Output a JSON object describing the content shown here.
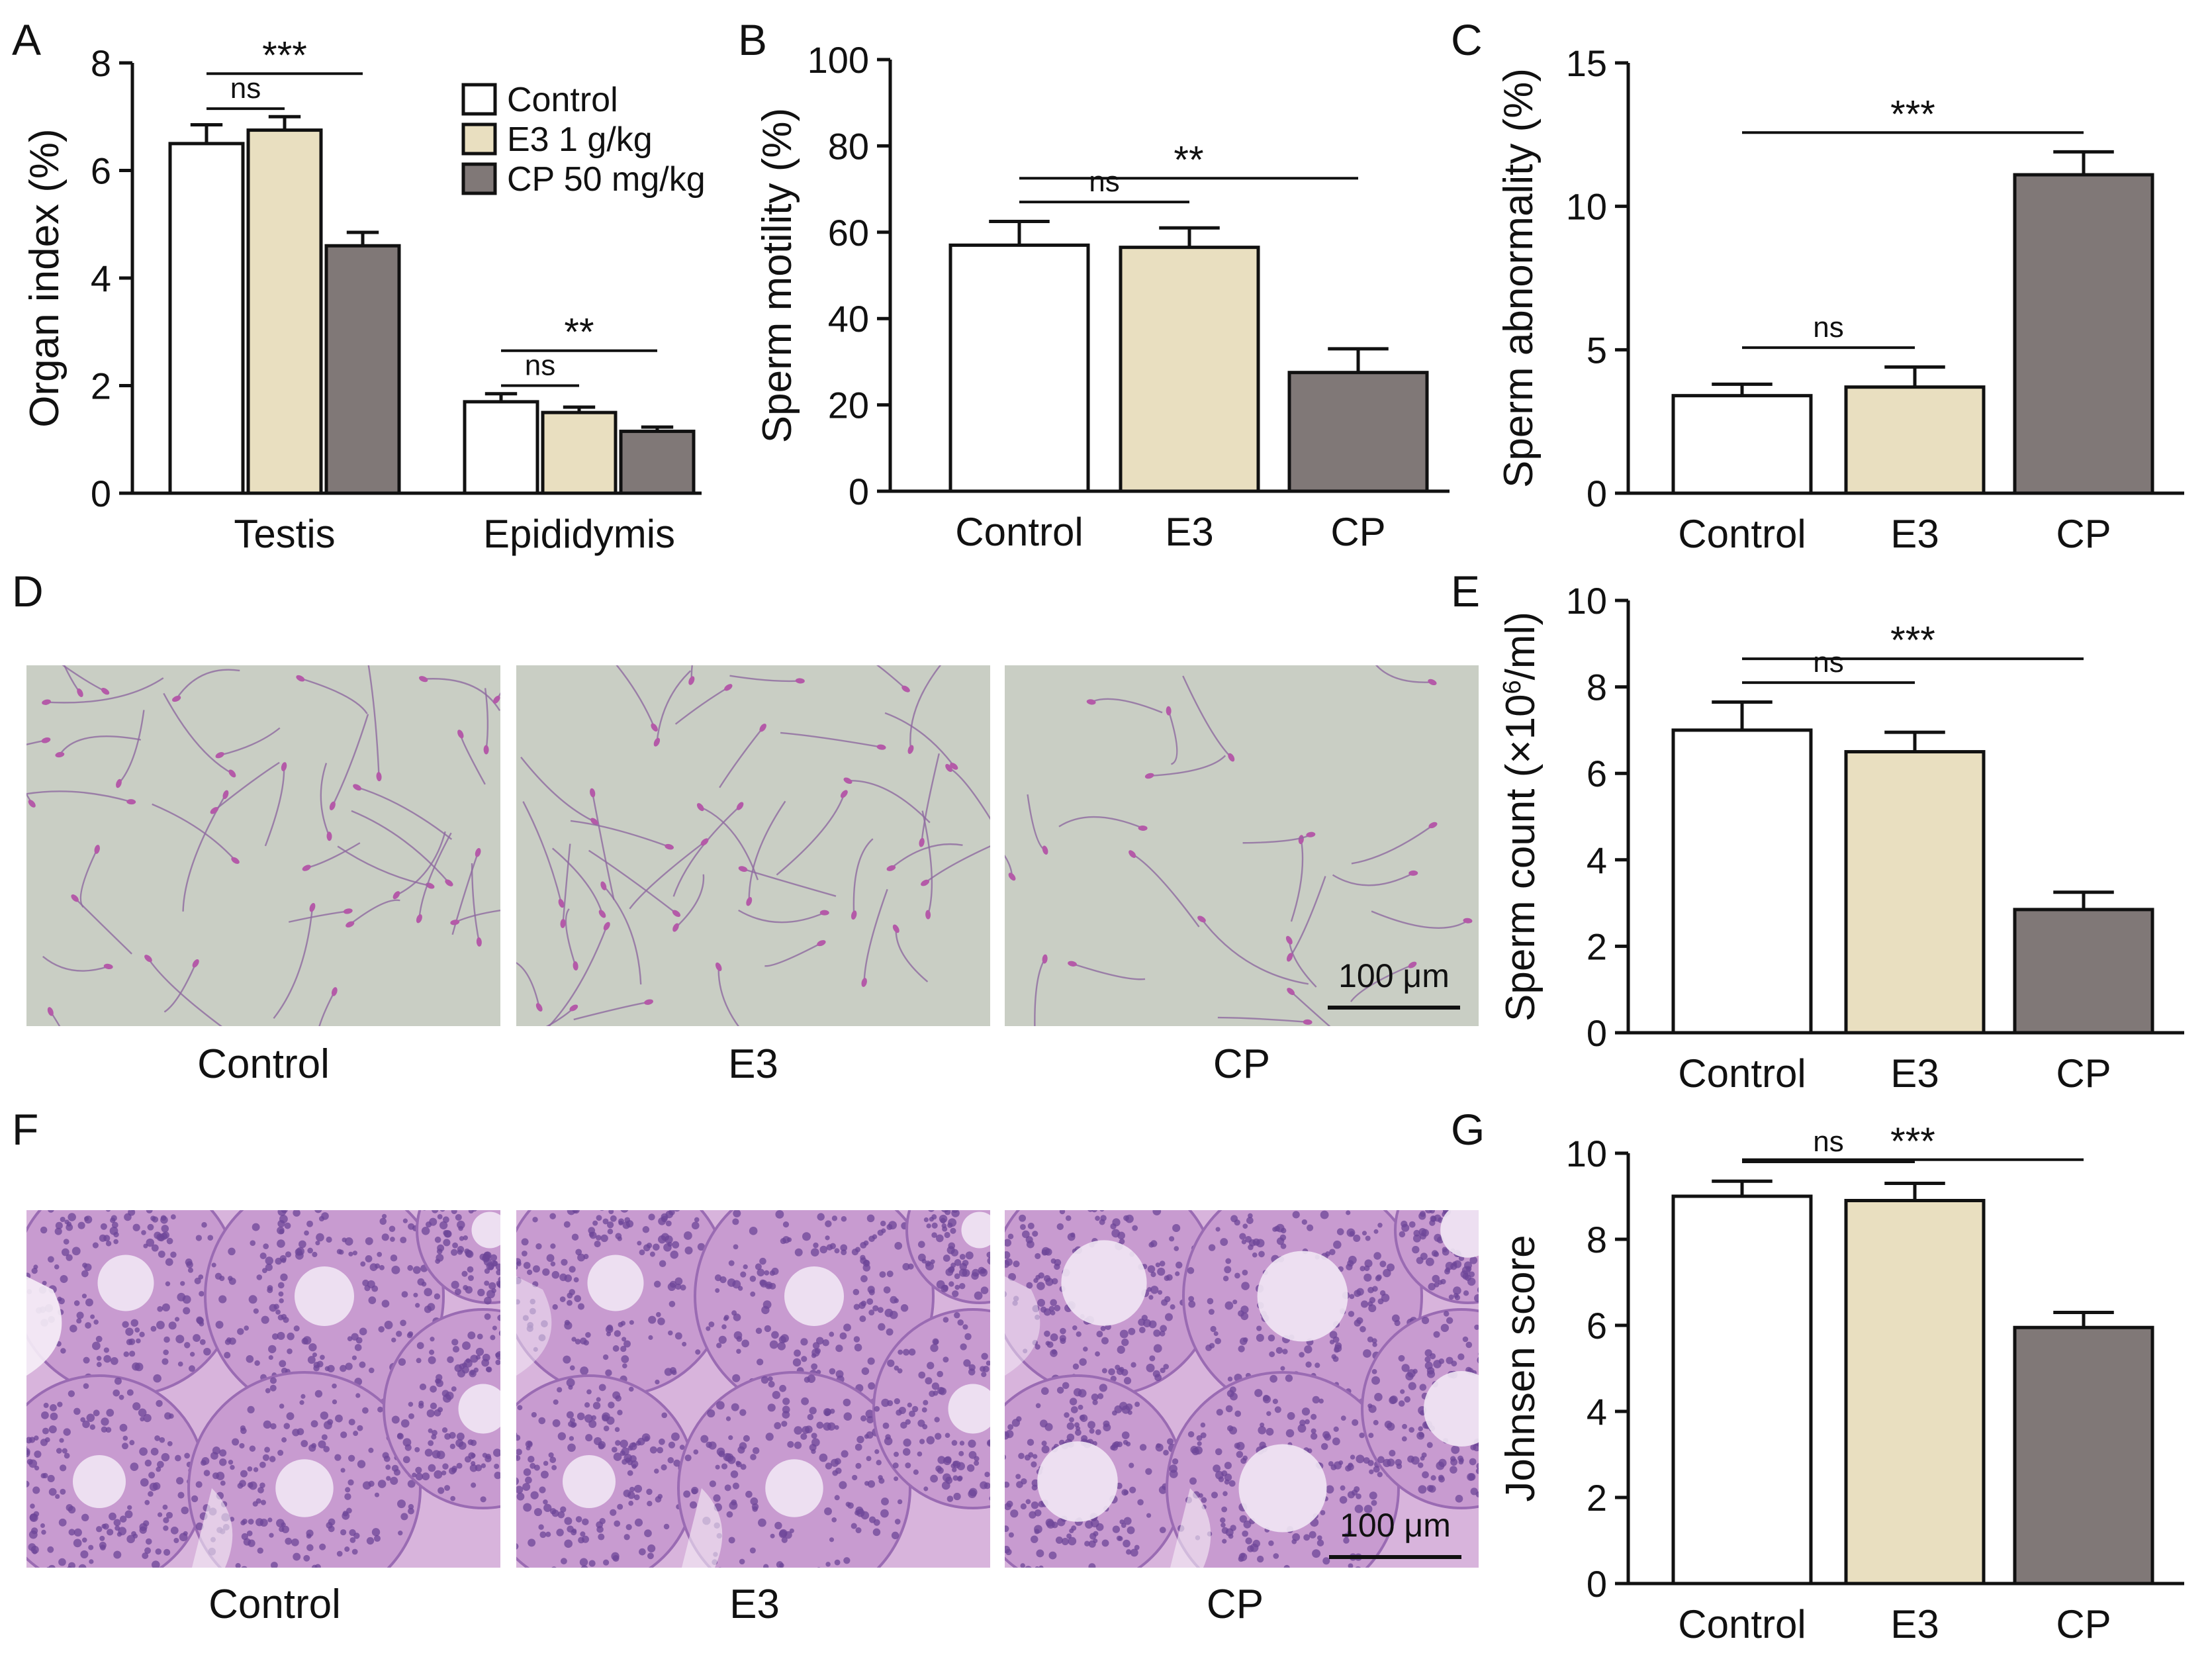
{
  "figure": {
    "panel_labels": [
      "A",
      "B",
      "C",
      "D",
      "E",
      "F",
      "G"
    ]
  },
  "colors": {
    "control": "#ffffff",
    "e3": "#e9dfc0",
    "cp": "#807877",
    "stroke": "#111111",
    "sperm_bg": "#c9cec4",
    "sperm_tail": "#8f6aa0",
    "sperm_head": "#b45aa8",
    "he_bg": "#d8b4dc",
    "he_cell": "#6d4598",
    "he_lumen": "#f1e7f4"
  },
  "chart_data": [
    {
      "panel": "A",
      "type": "bar",
      "categories": [
        "Testis",
        "Epididymis"
      ],
      "series": [
        {
          "name": "Control",
          "values": [
            6.5,
            1.7
          ],
          "errors": [
            0.35,
            0.15
          ]
        },
        {
          "name": "E3 1 g/kg",
          "values": [
            6.75,
            1.5
          ],
          "errors": [
            0.25,
            0.1
          ]
        },
        {
          "name": "CP 50 mg/kg",
          "values": [
            4.6,
            1.15
          ],
          "errors": [
            0.25,
            0.08
          ]
        }
      ],
      "ylabel": "Organ index (%)",
      "ylim": [
        0,
        8
      ],
      "yticks": [
        "0",
        "2",
        "4",
        "6",
        "8"
      ],
      "legend_position": "top-right",
      "significance": [
        {
          "group": 0,
          "from": 0,
          "to": 2,
          "label": "***"
        },
        {
          "group": 0,
          "from": 0,
          "to": 1,
          "label": "ns"
        },
        {
          "group": 1,
          "from": 0,
          "to": 2,
          "label": "**"
        },
        {
          "group": 1,
          "from": 0,
          "to": 1,
          "label": "ns"
        }
      ]
    },
    {
      "panel": "B",
      "type": "bar",
      "categories": [
        "Control",
        "E3",
        "CP"
      ],
      "values": [
        57,
        56.5,
        27.5
      ],
      "errors": [
        5.5,
        4.5,
        5.5
      ],
      "ylabel": "Sperm motility (%)",
      "ylim": [
        0,
        100
      ],
      "yticks": [
        "0",
        "20",
        "40",
        "60",
        "80",
        "100"
      ],
      "significance": [
        {
          "from": 0,
          "to": 2,
          "label": "**"
        },
        {
          "from": 0,
          "to": 1,
          "label": "ns"
        }
      ]
    },
    {
      "panel": "C",
      "type": "bar",
      "categories": [
        "Control",
        "E3",
        "CP"
      ],
      "values": [
        3.4,
        3.7,
        11.1
      ],
      "errors": [
        0.4,
        0.7,
        0.8
      ],
      "ylabel": "Sperm abnormality (%)",
      "ylim": [
        0,
        15
      ],
      "yticks": [
        "0",
        "5",
        "10",
        "15"
      ],
      "significance": [
        {
          "from": 0,
          "to": 2,
          "label": "***"
        },
        {
          "from": 0,
          "to": 1,
          "label": "ns"
        }
      ]
    },
    {
      "panel": "E",
      "type": "bar",
      "categories": [
        "Control",
        "E3",
        "CP"
      ],
      "values": [
        7.0,
        6.5,
        2.85
      ],
      "errors": [
        0.65,
        0.45,
        0.4
      ],
      "ylabel": "Sperm count (×10⁶/ml)",
      "ylim": [
        0,
        10
      ],
      "yticks": [
        "0",
        "2",
        "4",
        "6",
        "8",
        "10"
      ],
      "significance": [
        {
          "from": 0,
          "to": 2,
          "label": "***"
        },
        {
          "from": 0,
          "to": 1,
          "label": "ns"
        }
      ]
    },
    {
      "panel": "G",
      "type": "bar",
      "categories": [
        "Control",
        "E3",
        "CP"
      ],
      "values": [
        9.0,
        8.9,
        5.95
      ],
      "errors": [
        0.35,
        0.4,
        0.35
      ],
      "ylabel": "Johnsen score",
      "ylim": [
        0,
        10
      ],
      "yticks": [
        "0",
        "2",
        "4",
        "6",
        "8",
        "10"
      ],
      "significance": [
        {
          "from": 0,
          "to": 2,
          "label": "***"
        },
        {
          "from": 0,
          "to": 1,
          "label": "ns"
        }
      ]
    }
  ],
  "micrographs": {
    "D": {
      "labels": [
        "Control",
        "E3",
        "CP"
      ],
      "scale_bar": "100 μm"
    },
    "F": {
      "labels": [
        "Control",
        "E3",
        "CP"
      ],
      "scale_bar": "100 μm"
    }
  }
}
